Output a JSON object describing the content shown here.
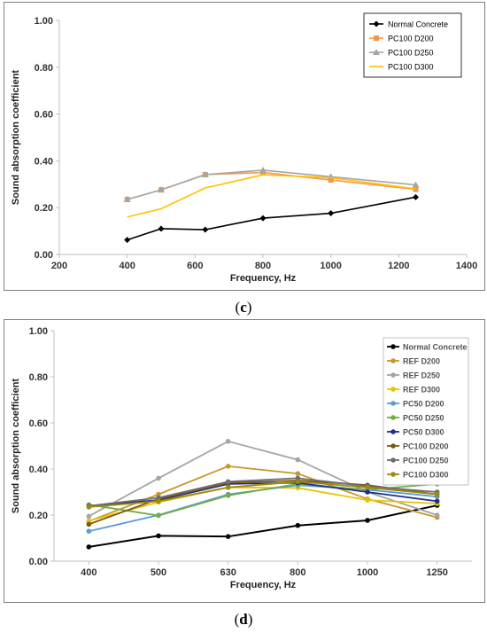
{
  "chart_data": [
    {
      "type": "line",
      "caption_letter": "c",
      "xlabel": "Frequency, Hz",
      "ylabel": "Sound absorption coefficient",
      "xlim": [
        200,
        1400
      ],
      "ylim": [
        0,
        1
      ],
      "xticks": [
        "200",
        "400",
        "600",
        "800",
        "1000",
        "1200",
        "1400"
      ],
      "yticks": [
        "0.00",
        "0.20",
        "0.40",
        "0.60",
        "0.80",
        "1.00"
      ],
      "legend_position": "top-right",
      "grid": false,
      "x": [
        400,
        500,
        630,
        800,
        1000,
        1250
      ],
      "series": [
        {
          "name": "Normal Concrete",
          "color": "#000000",
          "marker": "diamond",
          "values": [
            0.062,
            0.11,
            0.106,
            0.155,
            0.176,
            0.245
          ]
        },
        {
          "name": "PC100 D200",
          "color": "#f79646",
          "marker": "square",
          "values": [
            0.235,
            0.276,
            0.341,
            0.35,
            0.318,
            0.278
          ]
        },
        {
          "name": "PC100 D250",
          "color": "#a5a5a5",
          "marker": "triangle",
          "values": [
            0.235,
            0.276,
            0.341,
            0.36,
            0.332,
            0.297
          ]
        },
        {
          "name": "PC100 D300",
          "color": "#ffc000",
          "marker": "none",
          "values": [
            0.16,
            0.195,
            0.284,
            0.34,
            0.328,
            0.28
          ]
        }
      ]
    },
    {
      "type": "line",
      "caption_letter": "d",
      "xlabel": "Frequency, Hz",
      "ylabel": "Sound absorption coefficient",
      "ylim": [
        0,
        1
      ],
      "categories": [
        "400",
        "500",
        "630",
        "800",
        "1000",
        "1250"
      ],
      "yticks": [
        "0.00",
        "0.20",
        "0.40",
        "0.60",
        "0.80",
        "1.00"
      ],
      "legend_position": "top-right",
      "grid": false,
      "series": [
        {
          "name": "Normal Concrete",
          "color": "#000000",
          "values": [
            0.062,
            0.11,
            0.107,
            0.155,
            0.177,
            0.242
          ]
        },
        {
          "name": "REF D200",
          "color": "#c9962b",
          "values": [
            0.173,
            0.29,
            0.412,
            0.38,
            0.27,
            0.19
          ]
        },
        {
          "name": "REF D250",
          "color": "#a5a5a5",
          "values": [
            0.195,
            0.36,
            0.52,
            0.44,
            0.3,
            0.2
          ]
        },
        {
          "name": "REF D300",
          "color": "#e8c400",
          "values": [
            0.175,
            0.256,
            0.32,
            0.318,
            0.265,
            0.25
          ]
        },
        {
          "name": "PC50 D200",
          "color": "#5b9bd5",
          "values": [
            0.13,
            0.2,
            0.29,
            0.33,
            0.31,
            0.28
          ]
        },
        {
          "name": "PC50 D250",
          "color": "#70ad47",
          "values": [
            0.245,
            0.198,
            0.285,
            0.335,
            0.31,
            0.335
          ]
        },
        {
          "name": "PC50 D300",
          "color": "#1f2f8a",
          "values": [
            0.24,
            0.265,
            0.335,
            0.34,
            0.3,
            0.26
          ]
        },
        {
          "name": "PC100 D200",
          "color": "#7b5a14",
          "values": [
            0.16,
            0.27,
            0.34,
            0.35,
            0.33,
            0.29
          ]
        },
        {
          "name": "PC100 D250",
          "color": "#6e6e6e",
          "values": [
            0.24,
            0.275,
            0.345,
            0.36,
            0.325,
            0.3
          ]
        },
        {
          "name": "PC100 D300",
          "color": "#9c8a10",
          "values": [
            0.235,
            0.26,
            0.32,
            0.345,
            0.32,
            0.29
          ]
        }
      ]
    }
  ]
}
